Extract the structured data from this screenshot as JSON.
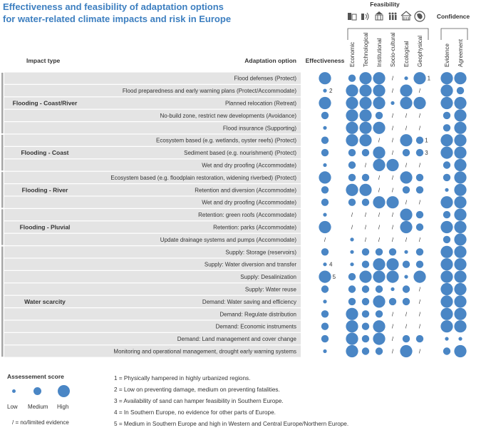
{
  "title": {
    "line1": "Effectiveness and feasibility of adaptation options",
    "line2": "for water-related climate impacts and risk in Europe"
  },
  "headers": {
    "impact_type": "Impact type",
    "adaptation_option": "Adaptation option",
    "effectiveness": "Effectiveness",
    "feasibility": "Feasibility",
    "confidence": "Confidence",
    "feasibility_columns": [
      "Economic",
      "Technological",
      "Institutional",
      "Socio-cultural",
      "Ecological",
      "Geophysical"
    ],
    "confidence_columns": [
      "Evidence",
      "Agreement"
    ]
  },
  "colors": {
    "accent": "#4a86c5",
    "title": "#3d7fc0",
    "row_band": "#e4e4e4",
    "group_bar": "#a6a6a6"
  },
  "icons": [
    "money-icon",
    "phone-signal-icon",
    "government-building-icon",
    "people-icon",
    "ecosystem-house-icon",
    "globe-icon"
  ],
  "groups": [
    {
      "name": "Flooding - Coast/River",
      "rows": [
        0,
        4
      ]
    },
    {
      "name": "Flooding - Coast",
      "rows": [
        5,
        7
      ]
    },
    {
      "name": "Flooding - River",
      "rows": [
        8,
        10
      ]
    },
    {
      "name": "Flooding - Pluvial",
      "rows": [
        11,
        13
      ]
    },
    {
      "name": "Water scarcity",
      "rows": [
        14,
        22
      ]
    }
  ],
  "rows": [
    {
      "option": "Flood defenses (Protect)",
      "cells": [
        "H",
        "M",
        "H",
        "H",
        "/",
        "L",
        "H",
        "H",
        "H"
      ],
      "notes": {
        "6": "1"
      }
    },
    {
      "option": "Flood preparedness and early warning plans (Protect/Accommodate)",
      "cells": [
        "L",
        "H",
        "H",
        "H",
        "/",
        "H",
        "/",
        "H",
        "M"
      ],
      "notes": {
        "0": "2"
      }
    },
    {
      "option": "Planned relocation (Retreat)",
      "cells": [
        "H",
        "H",
        "H",
        "H",
        "L",
        "H",
        "H",
        "H",
        "H"
      ]
    },
    {
      "option": "No-build zone, restrict new developments (Avoidance)",
      "cells": [
        "M",
        "H",
        "H",
        "M",
        "/",
        "/",
        "/",
        "M",
        "H"
      ]
    },
    {
      "option": "Flood insurance (Supporting)",
      "cells": [
        "L",
        "H",
        "H",
        "H",
        "/",
        "/",
        "/",
        "M",
        "H"
      ]
    },
    {
      "option": "Ecosystem based (e.g. wetlands, oyster reefs) (Protect)",
      "cells": [
        "M",
        "H",
        "H",
        "/",
        "/",
        "H",
        "M",
        "H",
        "H"
      ],
      "notes": {
        "6": "1"
      }
    },
    {
      "option": "Sediment based (e.g. nourishment) (Protect)",
      "cells": [
        "M",
        "M",
        "M",
        "H",
        "/",
        "M",
        "M",
        "H",
        "H"
      ],
      "notes": {
        "6": "3"
      }
    },
    {
      "option": "Wet and dry proofing (Accommodate)",
      "cells": [
        "L",
        "M",
        "/",
        "H",
        "H",
        "/",
        "/",
        "M",
        "H"
      ]
    },
    {
      "option": "Ecosystem based (e.g. floodplain restoration, widening riverbed) (Protect)",
      "cells": [
        "H",
        "M",
        "M",
        "/",
        "/",
        "H",
        "M",
        "M",
        "H"
      ]
    },
    {
      "option": "Retention and diversion (Accommodate)",
      "cells": [
        "M",
        "H",
        "H",
        "/",
        "/",
        "M",
        "M",
        "L",
        "H"
      ]
    },
    {
      "option": "Wet and dry proofing (Accommodate)",
      "cells": [
        "M",
        "M",
        "M",
        "H",
        "H",
        "/",
        "/",
        "H",
        "H"
      ]
    },
    {
      "option": "Retention: green roofs (Accommodate)",
      "cells": [
        "L",
        "/",
        "/",
        "/",
        "/",
        "H",
        "M",
        "M",
        "H"
      ]
    },
    {
      "option": "Retention: parks (Accommodate)",
      "cells": [
        "H",
        "/",
        "/",
        "/",
        "/",
        "H",
        "M",
        "H",
        "H"
      ]
    },
    {
      "option": "Update drainage systems and pumps (Accommodate)",
      "cells": [
        "/",
        "L",
        "/",
        "/",
        "/",
        "/",
        "/",
        "M",
        "H"
      ]
    },
    {
      "option": "Supply: Storage (reservoirs)",
      "cells": [
        "M",
        "L",
        "M",
        "M",
        "M",
        "L",
        "M",
        "H",
        "H"
      ]
    },
    {
      "option": "Supply: Water diversion and transfer",
      "cells": [
        "L",
        "L",
        "M",
        "H",
        "H",
        "M",
        "M",
        "H",
        "H"
      ],
      "notes": {
        "0": "4"
      }
    },
    {
      "option": "Supply: Desalinization",
      "cells": [
        "H",
        "M",
        "H",
        "H",
        "H",
        "L",
        "H",
        "H",
        "H"
      ],
      "notes": {
        "0": "5"
      }
    },
    {
      "option": "Supply: Water reuse",
      "cells": [
        "M",
        "M",
        "M",
        "M",
        "L",
        "M",
        "/",
        "H",
        "H"
      ]
    },
    {
      "option": "Demand: Water saving and efficiency",
      "cells": [
        "L",
        "M",
        "M",
        "H",
        "M",
        "M",
        "/",
        "H",
        "H"
      ]
    },
    {
      "option": "Demand: Regulate distribution",
      "cells": [
        "M",
        "H",
        "M",
        "M",
        "/",
        "/",
        "/",
        "H",
        "H"
      ]
    },
    {
      "option": "Demand: Economic instruments",
      "cells": [
        "M",
        "H",
        "M",
        "H",
        "/",
        "/",
        "/",
        "H",
        "H"
      ]
    },
    {
      "option": "Demand: Land management and cover change",
      "cells": [
        "M",
        "H",
        "M",
        "H",
        "/",
        "M",
        "M",
        "L",
        "L"
      ]
    },
    {
      "option": "Monitoring and operational management, drought early warning systems",
      "cells": [
        "L",
        "H",
        "M",
        "M",
        "/",
        "H",
        "/",
        "M",
        "H"
      ]
    }
  ],
  "legend": {
    "title": "Assessement score",
    "levels": [
      "Low",
      "Medium",
      "High"
    ],
    "no_evidence": "/ = no/limited evidence",
    "notes": [
      "1 = Physically hampered in highly urbanized regions.",
      "2 = Low on preventing damage, medium on preventing fatalities.",
      "3 = Availability of sand can hamper feasibility in Southern Europe.",
      "4 = In Southern Europe, no evidence for other parts of Europe.",
      "5 = Medium in Southern Europe and high in Western and Central Europe/Northern Europe."
    ]
  }
}
